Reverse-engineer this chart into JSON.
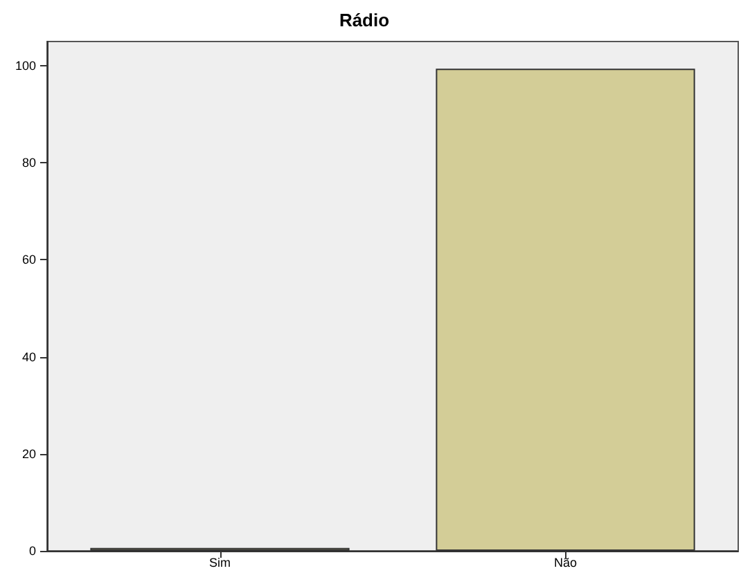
{
  "chart_data": {
    "type": "bar",
    "title": "Rádio",
    "categories": [
      "Sim",
      "Não"
    ],
    "values": [
      0.6,
      99.4
    ],
    "color": "#d3cd97",
    "ylim": [
      0,
      105
    ],
    "yticks": [
      0,
      20,
      40,
      60,
      80,
      100
    ],
    "grid": false
  }
}
